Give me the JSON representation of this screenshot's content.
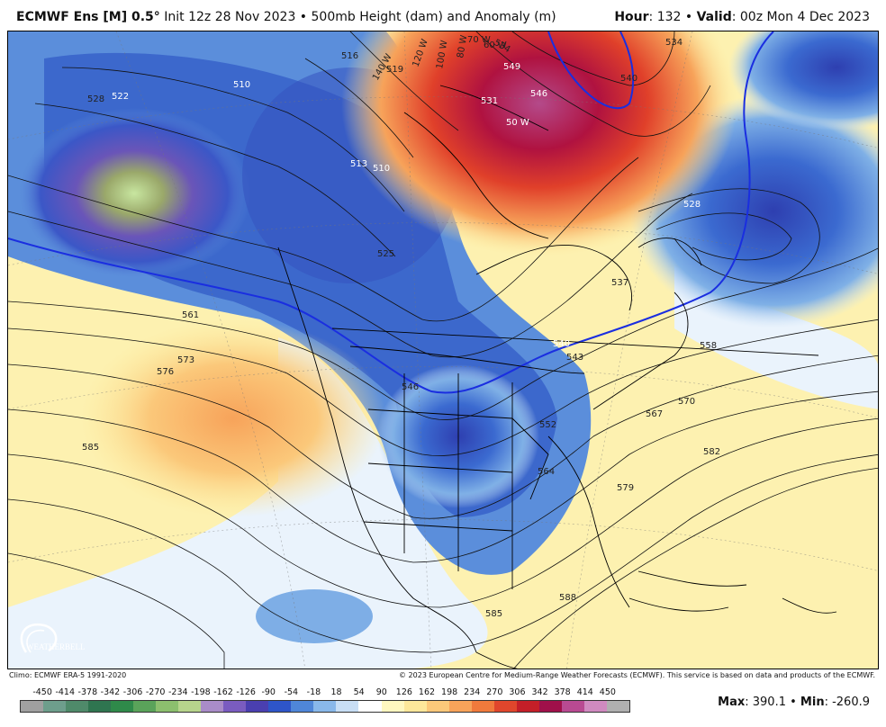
{
  "header": {
    "model_name": "ECMWF Ens [M] 0.5°",
    "init": " Init 12z 28 Nov 2023 • 500mb Height (dam) and Anomaly (m)",
    "hour_label": "Hour",
    "hour_value": ": 132 • ",
    "valid_label": "Valid",
    "valid_value": ": 00z Mon 4 Dec 2023"
  },
  "map": {
    "contour_labels": [
      "516",
      "519",
      "513",
      "510",
      "510",
      "522",
      "528",
      "525",
      "534",
      "531",
      "549",
      "546",
      "540",
      "537",
      "543",
      "528",
      "540",
      "561",
      "573",
      "576",
      "585",
      "546",
      "552",
      "564",
      "567",
      "570",
      "558",
      "579",
      "582",
      "585",
      "588",
      "140 W",
      "120 W",
      "100 W",
      "70 W",
      "80 W",
      "60 W",
      "50 W",
      "534"
    ],
    "logo_text": "WEATHERBELL"
  },
  "footer": {
    "climo": "Climo: ECMWF ERA-5 1991-2020",
    "copyright": "© 2023 European Centre for Medium-Range Weather Forecasts (ECMWF). This service is based on data and products of the ECMWF."
  },
  "colorbar": {
    "ticks": [
      "-450",
      "-414",
      "-378",
      "-342",
      "-306",
      "-270",
      "-234",
      "-198",
      "-162",
      "-126",
      "-90",
      "-54",
      "-18",
      "18",
      "54",
      "90",
      "126",
      "162",
      "198",
      "234",
      "270",
      "306",
      "342",
      "378",
      "414",
      "450"
    ],
    "colors": [
      "#a0a0a0",
      "#6e9e8c",
      "#4f8a6a",
      "#2f7550",
      "#2f8a4a",
      "#5aa35a",
      "#8cbf6e",
      "#b7d48c",
      "#a98cc8",
      "#7a5cc0",
      "#4a3fb0",
      "#2e55c8",
      "#4f86d8",
      "#89b8ea",
      "#c8def5",
      "#ffffff",
      "#fff7c0",
      "#fde79a",
      "#fbc87a",
      "#f7a35a",
      "#f07a3c",
      "#e0462c",
      "#c41f28",
      "#a0104a",
      "#b94a92",
      "#d08ac0",
      "#b0b0b0"
    ],
    "max_label": "Max",
    "max_value": ": 390.1 • ",
    "min_label": "Min",
    "min_value": ": -260.9"
  }
}
